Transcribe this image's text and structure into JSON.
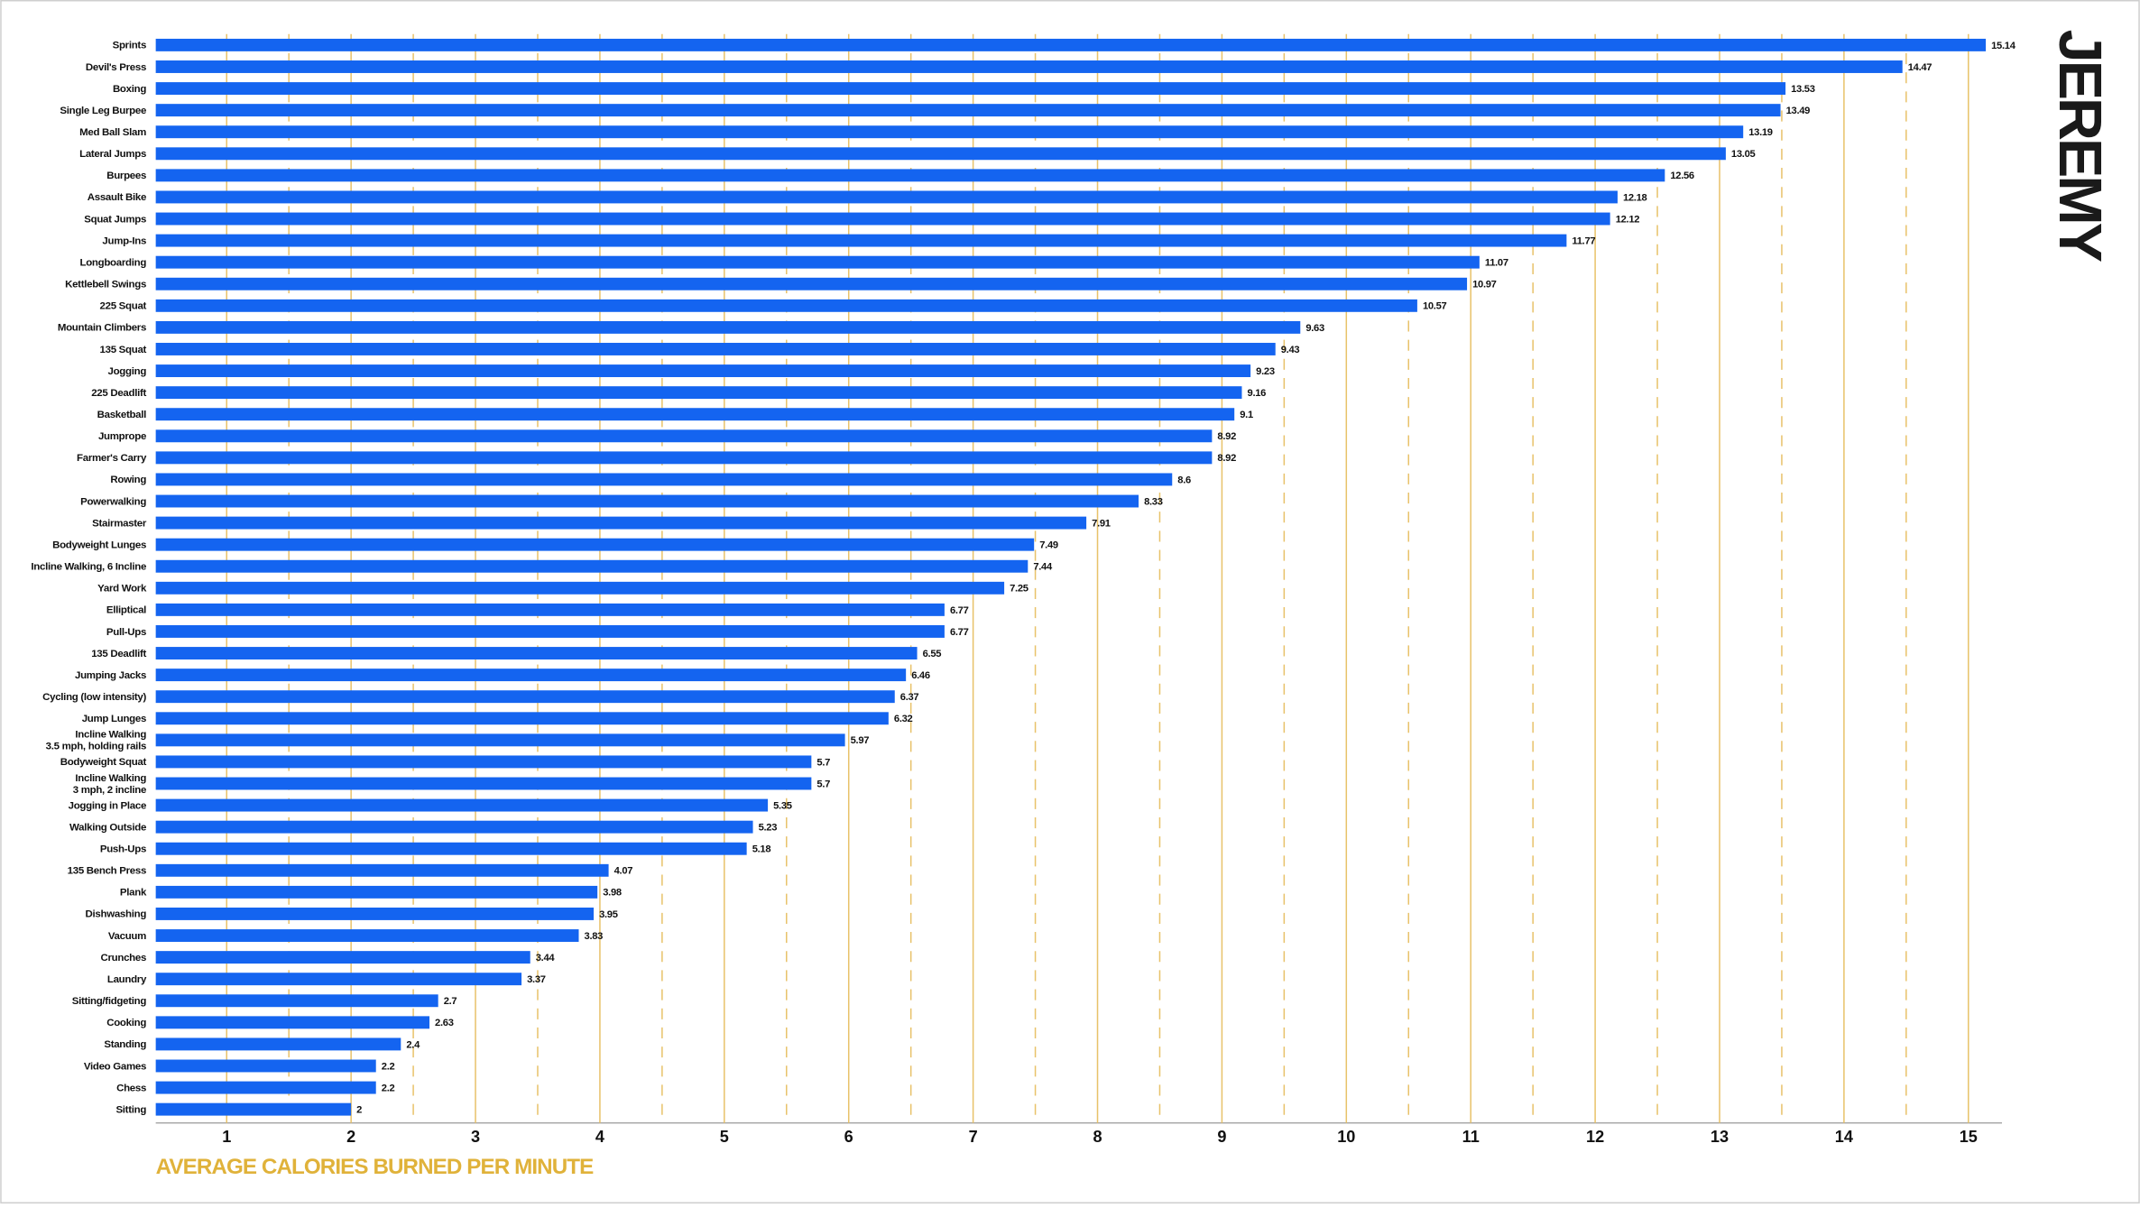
{
  "chart_data": {
    "type": "barh",
    "title": "JEREMY",
    "x_label": "AVERAGE CALORIES BURNED PER MINUTE",
    "categories": [
      "Sprints",
      "Devil's Press",
      "Boxing",
      "Single Leg Burpee",
      "Med Ball Slam",
      "Lateral Jumps",
      "Burpees",
      "Assault Bike",
      "Squat Jumps",
      "Jump-Ins",
      "Longboarding",
      "Kettlebell Swings",
      "225 Squat",
      "Mountain Climbers",
      "135 Squat",
      "Jogging",
      "225 Deadlift",
      "Basketball",
      "Jumprope",
      "Farmer's Carry",
      "Rowing",
      "Powerwalking",
      "Stairmaster",
      "Bodyweight Lunges",
      "Incline Walking, 6 Incline",
      "Yard Work",
      "Elliptical",
      "Pull-Ups",
      "135 Deadlift",
      "Jumping Jacks",
      "Cycling (low intensity)",
      "Jump Lunges",
      "Incline Walking\n3.5 mph, holding rails",
      "Bodyweight Squat",
      "Incline Walking\n3 mph, 2 incline",
      "Jogging in Place",
      "Walking Outside",
      "Push-Ups",
      "135 Bench Press",
      "Plank",
      "Dishwashing",
      "Vacuum",
      "Crunches",
      "Laundry",
      "Sitting/fidgeting",
      "Cooking",
      "Standing",
      "Video Games",
      "Chess",
      "Sitting"
    ],
    "values": [
      15.14,
      14.47,
      13.53,
      13.49,
      13.19,
      13.05,
      12.56,
      12.18,
      12.12,
      11.77,
      11.07,
      10.97,
      10.57,
      9.63,
      9.43,
      9.23,
      9.16,
      9.1,
      8.92,
      8.92,
      8.6,
      8.33,
      7.91,
      7.49,
      7.44,
      7.25,
      6.77,
      6.77,
      6.55,
      6.46,
      6.37,
      6.32,
      5.97,
      5.7,
      5.7,
      5.35,
      5.23,
      5.18,
      4.07,
      3.98,
      3.95,
      3.83,
      3.44,
      3.37,
      2.7,
      2.63,
      2.4,
      2.2,
      2.2,
      2
    ],
    "color": "#1464f0",
    "grid_color": "#e8c26a",
    "label_color": "#e0b23a",
    "xlim": [
      0.43,
      15.27
    ],
    "xticks": [
      1,
      2,
      3,
      4,
      5,
      6,
      7,
      8,
      9,
      10,
      11,
      12,
      13,
      14,
      15
    ],
    "grid": true
  }
}
